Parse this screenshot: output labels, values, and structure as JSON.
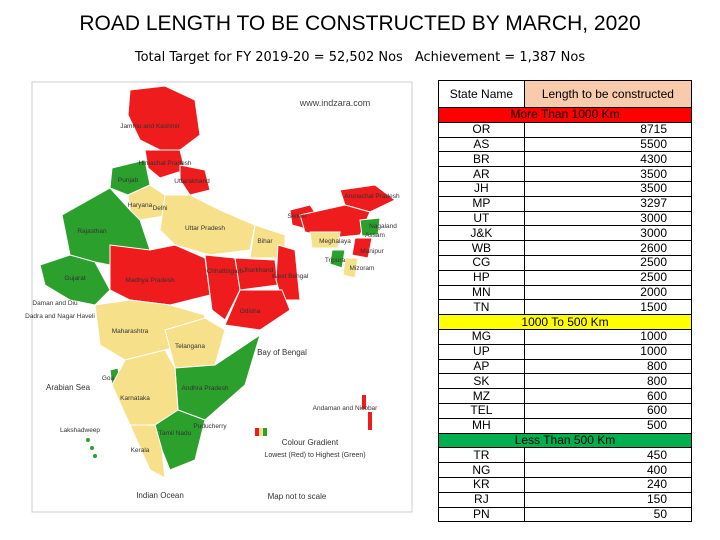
{
  "title": "ROAD LENGTH TO BE CONSTRUCTED BY MARCH, 2020",
  "subtitle": {
    "target": "Total Target for FY 2019-20 = 52,502 Nos",
    "achievement": "Achievement = 1,387 Nos"
  },
  "map": {
    "website": "www.indzara.com",
    "labels": [
      "Jammu and Kashmir",
      "Himachal Pradesh",
      "Punjab",
      "Uttarakhand",
      "Haryana",
      "Delhi",
      "Rajasthan",
      "Uttar Pradesh",
      "Sikkim",
      "Arunachal Pradesh",
      "Assam",
      "Nagaland",
      "Meghalaya",
      "Manipur",
      "Tripura",
      "Mizoram",
      "Bihar",
      "Jharkhand",
      "West Bengal",
      "Gujarat",
      "Madhya Pradesh",
      "Chhattisgarh",
      "Odisha",
      "Daman and Diu",
      "Dadra and Nagar Haveli",
      "Maharashtra",
      "Telangana",
      "Goa",
      "Andhra Pradesh",
      "Karnataka",
      "Tamil Nadu",
      "Kerala",
      "Puducherry",
      "Lakshadweep",
      "Andaman and Nicobar"
    ],
    "seas": [
      "Arabian Sea",
      "Bay of Bengal",
      "Indian Ocean"
    ],
    "legend_title": "Colour Gradient",
    "legend_text": "Lowest (Red) to Highest (Green)",
    "note": "Map not to scale"
  },
  "table": {
    "headers": [
      "State Name",
      "Length to be constructed"
    ],
    "groups": [
      {
        "label": "More Than 1000 Km",
        "color": "#ff0000",
        "rows": [
          [
            "OR",
            8715
          ],
          [
            "AS",
            5500
          ],
          [
            "BR",
            4300
          ],
          [
            "AR",
            3500
          ],
          [
            "JH",
            3500
          ],
          [
            "MP",
            3297
          ],
          [
            "UT",
            3000
          ],
          [
            "J&K",
            3000
          ],
          [
            "WB",
            2600
          ],
          [
            "CG",
            2500
          ],
          [
            "HP",
            2500
          ],
          [
            "MN",
            2000
          ],
          [
            "TN",
            1500
          ]
        ]
      },
      {
        "label": "1000 To 500 Km",
        "color": "#ffff00",
        "rows": [
          [
            "MG",
            1000
          ],
          [
            "UP",
            1000
          ],
          [
            "AP",
            800
          ],
          [
            "SK",
            800
          ],
          [
            "MZ",
            600
          ],
          [
            "TEL",
            600
          ],
          [
            "MH",
            500
          ]
        ]
      },
      {
        "label": "Less Than 500 Km",
        "color": "#00b050",
        "rows": [
          [
            "TR",
            450
          ],
          [
            "NG",
            400
          ],
          [
            "KR",
            240
          ],
          [
            "RJ",
            150
          ],
          [
            "PN",
            50
          ]
        ]
      }
    ]
  }
}
